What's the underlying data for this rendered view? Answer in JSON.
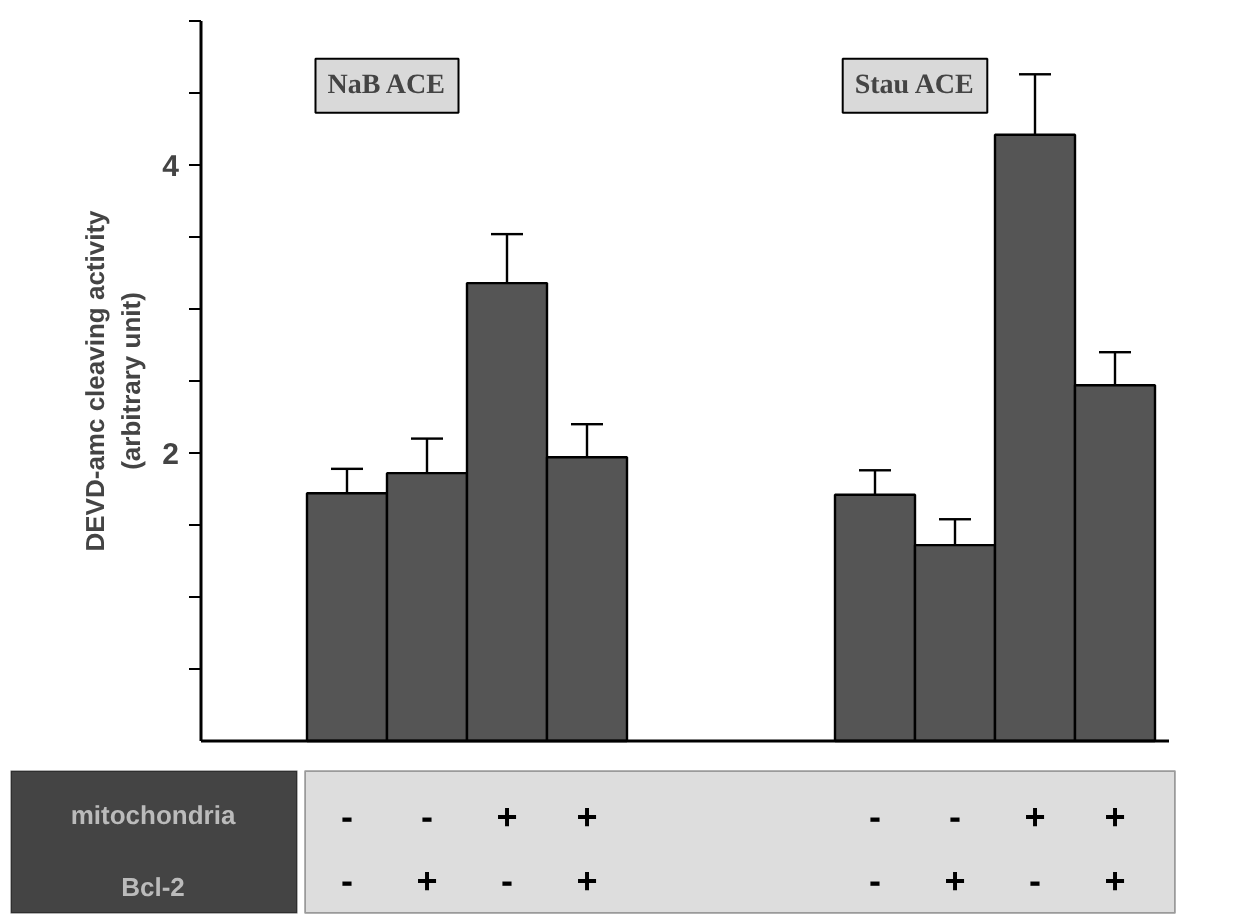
{
  "chart_data": {
    "type": "bar",
    "ylabel": "DEVD-amc cleaving activity\n(arbitrary unit)",
    "categories": [
      "-\n-",
      "-\n+",
      "+\n-",
      "+\n+",
      "-\n-",
      "-\n+",
      "+\n-",
      "+\n+"
    ],
    "values": [
      1.72,
      1.86,
      3.18,
      1.97,
      1.71,
      1.36,
      4.21,
      2.47
    ],
    "errors": [
      [
        1.72,
        1.89
      ],
      [
        1.86,
        2.1
      ],
      [
        3.18,
        3.52
      ],
      [
        1.97,
        2.2
      ],
      [
        1.71,
        1.88
      ],
      [
        1.36,
        1.54
      ],
      [
        4.21,
        4.63
      ],
      [
        2.47,
        2.7
      ]
    ],
    "color": "#555555",
    "ylim": [
      0,
      5
    ],
    "yticks": [
      2,
      4
    ],
    "grid": false,
    "annotations": [
      "NaB ACE",
      "Stau ACE",
      "mitochondria",
      "Bcl-2"
    ]
  }
}
